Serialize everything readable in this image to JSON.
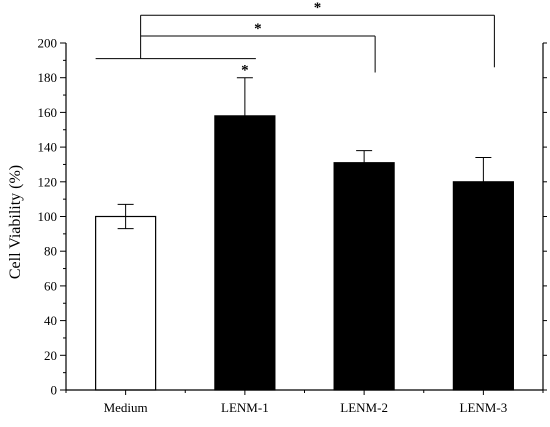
{
  "chart_data": {
    "type": "bar",
    "categories": [
      "Medium",
      "LENM-1",
      "LENM-2",
      "LENM-3"
    ],
    "values": [
      100,
      158,
      131,
      120
    ],
    "errors": [
      7,
      22,
      7,
      14
    ],
    "bar_colors": [
      "#ffffff",
      "#000000",
      "#000000",
      "#000000"
    ],
    "ylabel": "Cell Viability (%)",
    "xlabel": "",
    "ylim": [
      0,
      200
    ],
    "yticks": [
      "0",
      "20",
      "40",
      "60",
      "80",
      "100",
      "120",
      "140",
      "160",
      "180",
      "200"
    ],
    "grid": false,
    "bar_annotations": [
      {
        "category": "LENM-1",
        "text": "*"
      }
    ],
    "significance_brackets": [
      {
        "from": "Medium",
        "to": "LENM-1",
        "level": 191,
        "text": ""
      },
      {
        "from": "Medium",
        "to": "LENM-2",
        "level": 204,
        "text": "*"
      },
      {
        "from": "Medium",
        "to": "LENM-3",
        "level": 216,
        "text": "*"
      }
    ]
  }
}
